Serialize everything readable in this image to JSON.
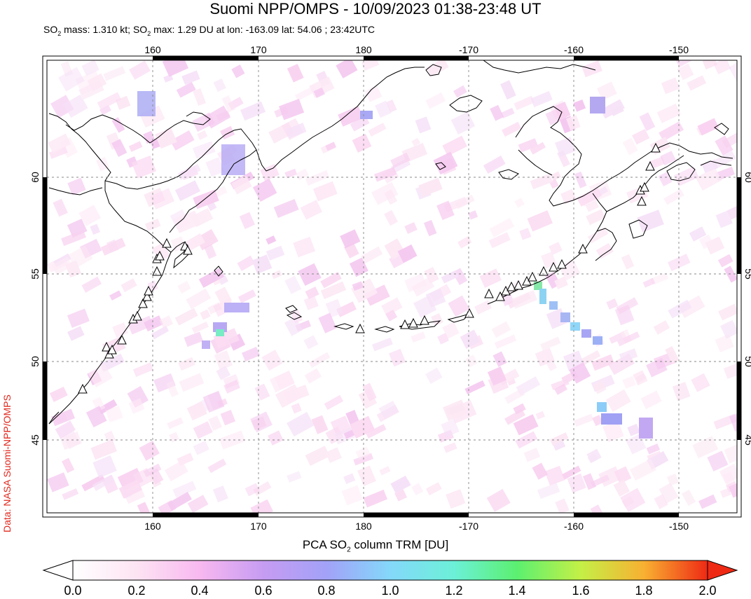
{
  "title": "Suomi NPP/OMPS - 10/09/2023 01:38-23:48 UT",
  "subtitle": {
    "so2_mass_label": "SO",
    "so2_mass_value": " mass: 1.310 kt; SO",
    "so2_max_rest": " max: 1.29 DU at lon: -163.09 lat: 54.06 ; 23:42UTC"
  },
  "side_credit": "Data: NASA Suomi-NPP/OMPS",
  "map": {
    "lon_labels": [
      "160",
      "170",
      "180",
      "-170",
      "-160",
      "-150"
    ],
    "lat_labels": [
      "60",
      "55",
      "50",
      "45"
    ],
    "colors": {
      "coast": "#000000",
      "grid": "#888888",
      "frame": "#000000"
    }
  },
  "colorbar": {
    "label_prefix": "PCA SO",
    "label_suffix": " column TRM [DU]",
    "ticks": [
      "0.0",
      "0.2",
      "0.4",
      "0.6",
      "0.8",
      "1.0",
      "1.2",
      "1.4",
      "1.6",
      "1.8",
      "2.0"
    ],
    "stops": [
      "#ffffff",
      "#fde4f3",
      "#f8b8f0",
      "#d09af0",
      "#a6a0f6",
      "#8cc2fb",
      "#76f0f6",
      "#5cf08a",
      "#7df050",
      "#f0f046",
      "#f89a2c",
      "#ee2a14"
    ]
  }
}
